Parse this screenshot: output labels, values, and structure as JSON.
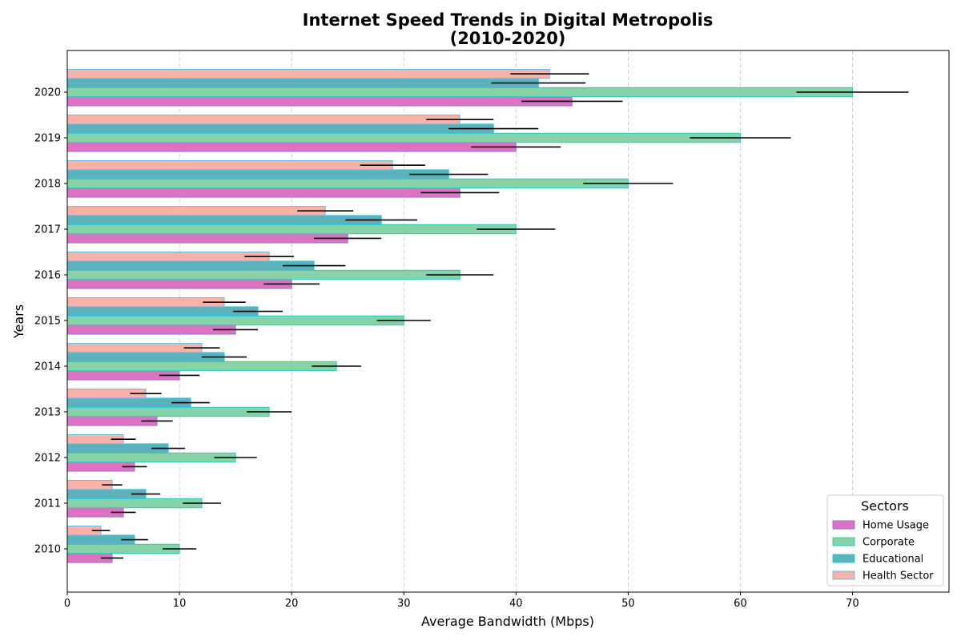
{
  "chart_data": {
    "type": "bar",
    "orientation": "horizontal",
    "title_line1": "Internet Speed Trends in Digital Metropolis",
    "title_line2": "(2010-2020)",
    "xlabel": "Average Bandwidth (Mbps)",
    "ylabel": "Years",
    "xlim": [
      0,
      78.6
    ],
    "x_ticks": [
      0,
      10,
      20,
      30,
      40,
      50,
      60,
      70
    ],
    "grid": "x-dashed",
    "categories": [
      "2010",
      "2011",
      "2012",
      "2013",
      "2014",
      "2015",
      "2016",
      "2017",
      "2018",
      "2019",
      "2020"
    ],
    "series": [
      {
        "name": "Home Usage",
        "color": "#dd72c2",
        "edge": "#8c7ad8",
        "values": [
          4,
          5,
          6,
          8,
          10,
          15,
          20,
          25,
          35,
          40,
          45
        ],
        "errors": [
          1,
          1.1,
          1.1,
          1.4,
          1.8,
          2,
          2.5,
          3,
          3.5,
          4,
          4.5
        ]
      },
      {
        "name": "Corporate",
        "color": "#85d3a6",
        "edge": "#2ec9c6",
        "values": [
          10,
          12,
          15,
          18,
          24,
          30,
          35,
          40,
          50,
          60,
          70
        ],
        "errors": [
          1.5,
          1.7,
          1.9,
          2,
          2.2,
          2.4,
          3,
          3.5,
          4,
          4.5,
          5
        ]
      },
      {
        "name": "Educational",
        "color": "#5bb2bc",
        "edge": "#2ec9dc",
        "values": [
          6,
          7,
          9,
          11,
          14,
          17,
          22,
          28,
          34,
          38,
          42
        ],
        "errors": [
          1.2,
          1.3,
          1.5,
          1.7,
          2,
          2.2,
          2.8,
          3.2,
          3.5,
          4,
          4.2
        ]
      },
      {
        "name": "Health Sector",
        "color": "#f8b2a8",
        "edge": "#6fbbe5",
        "values": [
          3,
          4,
          5,
          7,
          12,
          14,
          18,
          23,
          29,
          35,
          43
        ],
        "errors": [
          0.8,
          0.9,
          1.1,
          1.4,
          1.6,
          1.9,
          2.2,
          2.5,
          2.9,
          3,
          3.5
        ]
      }
    ],
    "legend": {
      "title": "Sectors",
      "placement": "lower-right"
    }
  }
}
